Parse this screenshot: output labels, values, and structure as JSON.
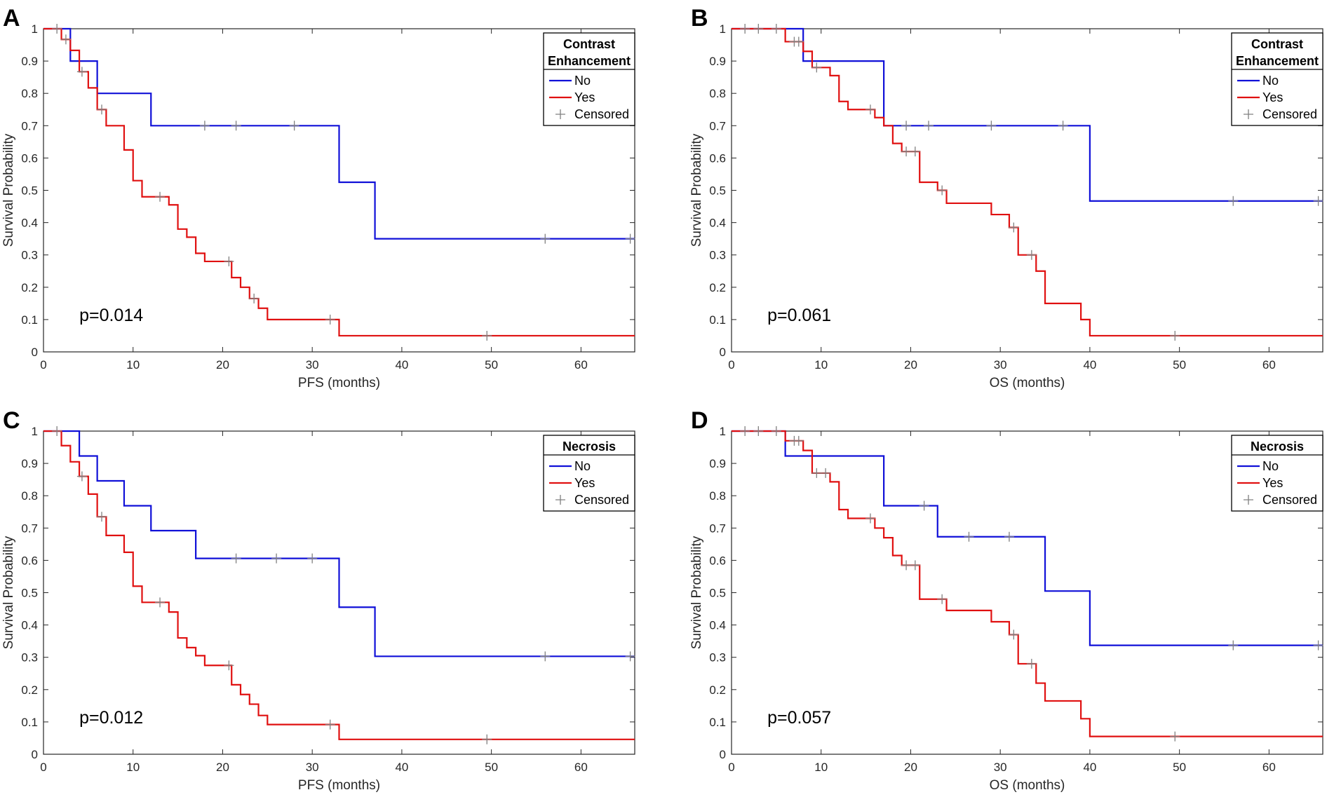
{
  "colors": {
    "no": "#1010d8",
    "yes": "#e01010",
    "censored": "#808080",
    "axis": "#262626"
  },
  "chart_data": [
    {
      "panel_label": "A",
      "type": "line",
      "style": "step",
      "xlabel": "PFS (months)",
      "ylabel": "Survival Probability",
      "xlim": [
        0,
        66
      ],
      "ylim": [
        0,
        1
      ],
      "xticks": [
        "0",
        "10",
        "20",
        "30",
        "40",
        "50",
        "60"
      ],
      "yticks": [
        "0",
        "0.1",
        "0.2",
        "0.3",
        "0.4",
        "0.5",
        "0.6",
        "0.7",
        "0.8",
        "0.9",
        "1"
      ],
      "annotation": "p=0.014",
      "legend": {
        "title": [
          "Contrast",
          "Enhancement"
        ],
        "entries": [
          "No",
          "Yes",
          "Censored"
        ],
        "position": "top-right"
      },
      "series": [
        {
          "name": "No",
          "steps": [
            [
              0,
              1
            ],
            [
              3,
              0.9
            ],
            [
              6,
              0.8
            ],
            [
              12,
              0.7
            ],
            [
              33,
              0.525
            ],
            [
              37,
              0.35
            ],
            [
              66,
              0.35
            ]
          ],
          "censored": [
            [
              18,
              0.7
            ],
            [
              21.5,
              0.7
            ],
            [
              28,
              0.7
            ],
            [
              56,
              0.35
            ],
            [
              65.5,
              0.35
            ]
          ]
        },
        {
          "name": "Yes",
          "steps": [
            [
              0,
              1
            ],
            [
              2,
              0.967
            ],
            [
              3,
              0.933
            ],
            [
              4,
              0.867
            ],
            [
              5,
              0.817
            ],
            [
              6,
              0.75
            ],
            [
              7,
              0.7
            ],
            [
              9,
              0.625
            ],
            [
              10,
              0.53
            ],
            [
              11,
              0.48
            ],
            [
              14,
              0.455
            ],
            [
              15,
              0.38
            ],
            [
              16,
              0.355
            ],
            [
              17,
              0.305
            ],
            [
              18,
              0.28
            ],
            [
              21,
              0.23
            ],
            [
              22,
              0.2
            ],
            [
              23,
              0.165
            ],
            [
              24,
              0.135
            ],
            [
              25,
              0.1
            ],
            [
              33,
              0.05
            ],
            [
              66,
              0.05
            ]
          ],
          "censored": [
            [
              1.5,
              1
            ],
            [
              2.5,
              0.967
            ],
            [
              4.3,
              0.867
            ],
            [
              6.5,
              0.75
            ],
            [
              13,
              0.48
            ],
            [
              20.7,
              0.28
            ],
            [
              23.5,
              0.165
            ],
            [
              32,
              0.1
            ],
            [
              49.5,
              0.05
            ]
          ]
        }
      ]
    },
    {
      "panel_label": "B",
      "type": "line",
      "style": "step",
      "xlabel": "OS (months)",
      "ylabel": "Survival Probability",
      "xlim": [
        0,
        66
      ],
      "ylim": [
        0,
        1
      ],
      "xticks": [
        "0",
        "10",
        "20",
        "30",
        "40",
        "50",
        "60"
      ],
      "yticks": [
        "0",
        "0.1",
        "0.2",
        "0.3",
        "0.4",
        "0.5",
        "0.6",
        "0.7",
        "0.8",
        "0.9",
        "1"
      ],
      "annotation": "p=0.061",
      "legend": {
        "title": [
          "Contrast",
          "Enhancement"
        ],
        "entries": [
          "No",
          "Yes",
          "Censored"
        ],
        "position": "top-right"
      },
      "series": [
        {
          "name": "No",
          "steps": [
            [
              0,
              1
            ],
            [
              8,
              0.9
            ],
            [
              17,
              0.7
            ],
            [
              40,
              0.467
            ],
            [
              66,
              0.467
            ]
          ],
          "censored": [
            [
              19.5,
              0.7
            ],
            [
              22,
              0.7
            ],
            [
              29,
              0.7
            ],
            [
              37,
              0.7
            ],
            [
              56,
              0.467
            ],
            [
              65.5,
              0.467
            ]
          ]
        },
        {
          "name": "Yes",
          "steps": [
            [
              0,
              1
            ],
            [
              6,
              0.96
            ],
            [
              8,
              0.93
            ],
            [
              9,
              0.88
            ],
            [
              11,
              0.855
            ],
            [
              12,
              0.775
            ],
            [
              13,
              0.75
            ],
            [
              16,
              0.725
            ],
            [
              17,
              0.7
            ],
            [
              18,
              0.645
            ],
            [
              19,
              0.62
            ],
            [
              21,
              0.525
            ],
            [
              23,
              0.5
            ],
            [
              24,
              0.46
            ],
            [
              29,
              0.425
            ],
            [
              31,
              0.385
            ],
            [
              32,
              0.3
            ],
            [
              34,
              0.25
            ],
            [
              35,
              0.15
            ],
            [
              39,
              0.1
            ],
            [
              40,
              0.05
            ],
            [
              66,
              0.05
            ]
          ],
          "censored": [
            [
              1.5,
              1
            ],
            [
              3,
              1
            ],
            [
              5,
              1
            ],
            [
              7,
              0.96
            ],
            [
              7.5,
              0.96
            ],
            [
              9.5,
              0.88
            ],
            [
              15.5,
              0.75
            ],
            [
              19.5,
              0.62
            ],
            [
              20.5,
              0.62
            ],
            [
              23.5,
              0.5
            ],
            [
              31.5,
              0.385
            ],
            [
              33.5,
              0.3
            ],
            [
              49.5,
              0.05
            ]
          ]
        }
      ]
    },
    {
      "panel_label": "C",
      "type": "line",
      "style": "step",
      "xlabel": "PFS (months)",
      "ylabel": "Survival Probability",
      "xlim": [
        0,
        66
      ],
      "ylim": [
        0,
        1
      ],
      "xticks": [
        "0",
        "10",
        "20",
        "30",
        "40",
        "50",
        "60"
      ],
      "yticks": [
        "0",
        "0.1",
        "0.2",
        "0.3",
        "0.4",
        "0.5",
        "0.6",
        "0.7",
        "0.8",
        "0.9",
        "1"
      ],
      "annotation": "p=0.012",
      "legend": {
        "title": [
          "Necrosis"
        ],
        "entries": [
          "No",
          "Yes",
          "Censored"
        ],
        "position": "top-right"
      },
      "series": [
        {
          "name": "No",
          "steps": [
            [
              0,
              1
            ],
            [
              4,
              0.923
            ],
            [
              6,
              0.846
            ],
            [
              9,
              0.769
            ],
            [
              12,
              0.692
            ],
            [
              17,
              0.606
            ],
            [
              33,
              0.455
            ],
            [
              37,
              0.303
            ],
            [
              66,
              0.303
            ]
          ],
          "censored": [
            [
              21.5,
              0.606
            ],
            [
              26,
              0.606
            ],
            [
              30,
              0.606
            ],
            [
              56,
              0.303
            ],
            [
              65.5,
              0.303
            ]
          ]
        },
        {
          "name": "Yes",
          "steps": [
            [
              0,
              1
            ],
            [
              2,
              0.955
            ],
            [
              3,
              0.905
            ],
            [
              4,
              0.86
            ],
            [
              5,
              0.805
            ],
            [
              6,
              0.735
            ],
            [
              7,
              0.677
            ],
            [
              9,
              0.625
            ],
            [
              10,
              0.52
            ],
            [
              11,
              0.47
            ],
            [
              14,
              0.44
            ],
            [
              15,
              0.36
            ],
            [
              16,
              0.33
            ],
            [
              17,
              0.305
            ],
            [
              18,
              0.275
            ],
            [
              21,
              0.215
            ],
            [
              22,
              0.185
            ],
            [
              23,
              0.155
            ],
            [
              24,
              0.12
            ],
            [
              25,
              0.092
            ],
            [
              33,
              0.046
            ],
            [
              66,
              0.046
            ]
          ],
          "censored": [
            [
              1.5,
              1
            ],
            [
              4.3,
              0.86
            ],
            [
              6.5,
              0.735
            ],
            [
              13,
              0.47
            ],
            [
              20.7,
              0.275
            ],
            [
              32,
              0.092
            ],
            [
              49.5,
              0.046
            ]
          ]
        }
      ]
    },
    {
      "panel_label": "D",
      "type": "line",
      "style": "step",
      "xlabel": "OS (months)",
      "ylabel": "Survival Probability",
      "xlim": [
        0,
        66
      ],
      "ylim": [
        0,
        1
      ],
      "xticks": [
        "0",
        "10",
        "20",
        "30",
        "40",
        "50",
        "60"
      ],
      "yticks": [
        "0",
        "0.1",
        "0.2",
        "0.3",
        "0.4",
        "0.5",
        "0.6",
        "0.7",
        "0.8",
        "0.9",
        "1"
      ],
      "annotation": "p=0.057",
      "legend": {
        "title": [
          "Necrosis"
        ],
        "entries": [
          "No",
          "Yes",
          "Censored"
        ],
        "position": "top-right"
      },
      "series": [
        {
          "name": "No",
          "steps": [
            [
              0,
              1
            ],
            [
              6,
              0.923
            ],
            [
              17,
              0.769
            ],
            [
              23,
              0.673
            ],
            [
              35,
              0.505
            ],
            [
              40,
              0.337
            ],
            [
              66,
              0.337
            ]
          ],
          "censored": [
            [
              21.5,
              0.769
            ],
            [
              26.5,
              0.673
            ],
            [
              31,
              0.673
            ],
            [
              56,
              0.337
            ],
            [
              65.5,
              0.337
            ]
          ]
        },
        {
          "name": "Yes",
          "steps": [
            [
              0,
              1
            ],
            [
              6,
              0.97
            ],
            [
              8,
              0.94
            ],
            [
              9,
              0.87
            ],
            [
              11,
              0.843
            ],
            [
              12,
              0.757
            ],
            [
              13,
              0.73
            ],
            [
              16,
              0.7
            ],
            [
              17,
              0.67
            ],
            [
              18,
              0.615
            ],
            [
              19,
              0.585
            ],
            [
              21,
              0.48
            ],
            [
              24,
              0.445
            ],
            [
              29,
              0.41
            ],
            [
              31,
              0.37
            ],
            [
              32,
              0.28
            ],
            [
              34,
              0.22
            ],
            [
              35,
              0.165
            ],
            [
              39,
              0.11
            ],
            [
              40,
              0.055
            ],
            [
              66,
              0.055
            ]
          ],
          "censored": [
            [
              1.5,
              1
            ],
            [
              3,
              1
            ],
            [
              5,
              1
            ],
            [
              7,
              0.97
            ],
            [
              7.5,
              0.97
            ],
            [
              9.5,
              0.87
            ],
            [
              10.5,
              0.87
            ],
            [
              15.5,
              0.73
            ],
            [
              19.5,
              0.585
            ],
            [
              20.5,
              0.585
            ],
            [
              23.5,
              0.48
            ],
            [
              31.5,
              0.37
            ],
            [
              33.5,
              0.28
            ],
            [
              49.5,
              0.055
            ]
          ]
        }
      ]
    }
  ]
}
